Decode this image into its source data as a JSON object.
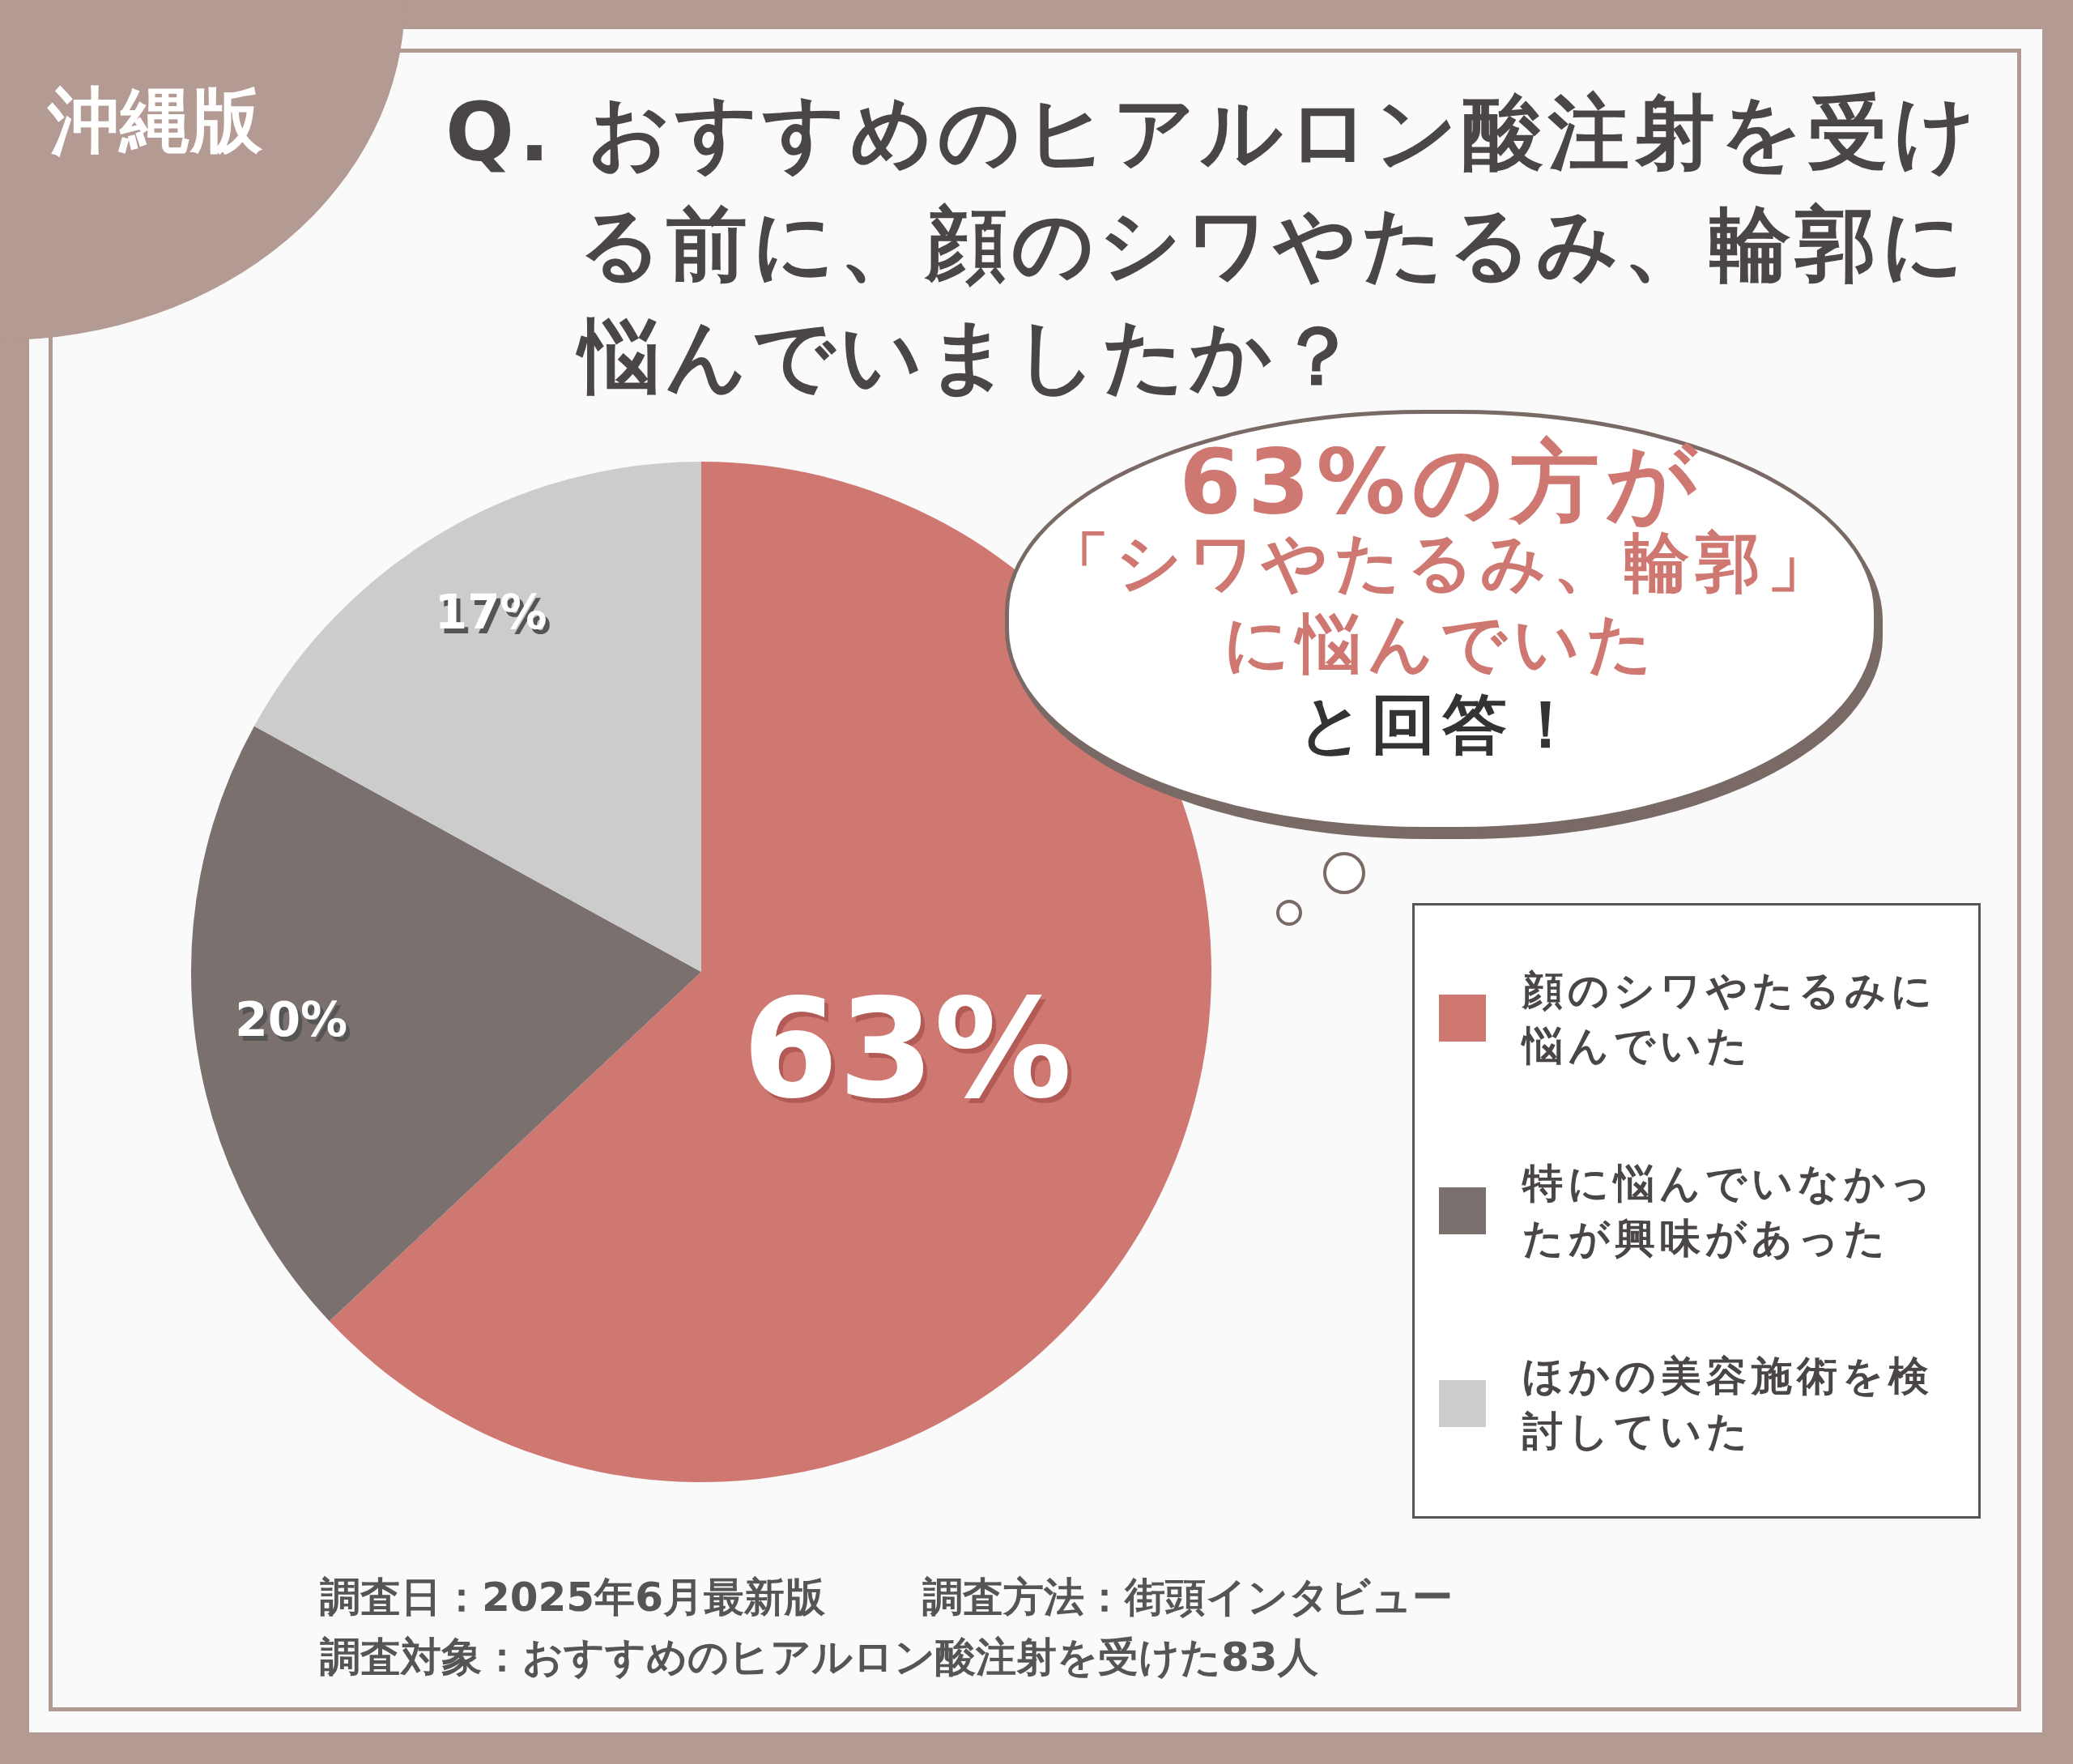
{
  "chart_data": {
    "type": "pie",
    "title": "Q. おすすめのヒアルロン酸注射を受ける前に、顔のシワやたるみ、輪郭に悩んでいましたか？",
    "subtitle": "沖縄版",
    "categories": [
      "顔のシワやたるみに悩んでいた",
      "特に悩んでいなかったが興味があった",
      "ほかの美容施術を検討していた"
    ],
    "values": [
      63,
      20,
      17
    ],
    "colors": [
      "#cf7872",
      "#7a716f",
      "#cccccc"
    ],
    "value_labels": [
      "63%",
      "20%",
      "17%"
    ],
    "legend": "right",
    "annotations": [
      "63%の方が",
      "「シワやたるみ、輪郭」",
      "に悩んでいた",
      "と回答！",
      "調査日：2025年6月最新版",
      "調査方法：街頭インタビュー",
      "調査対象：おすすめのヒアルロン酸注射を受けた83人"
    ]
  }
}
